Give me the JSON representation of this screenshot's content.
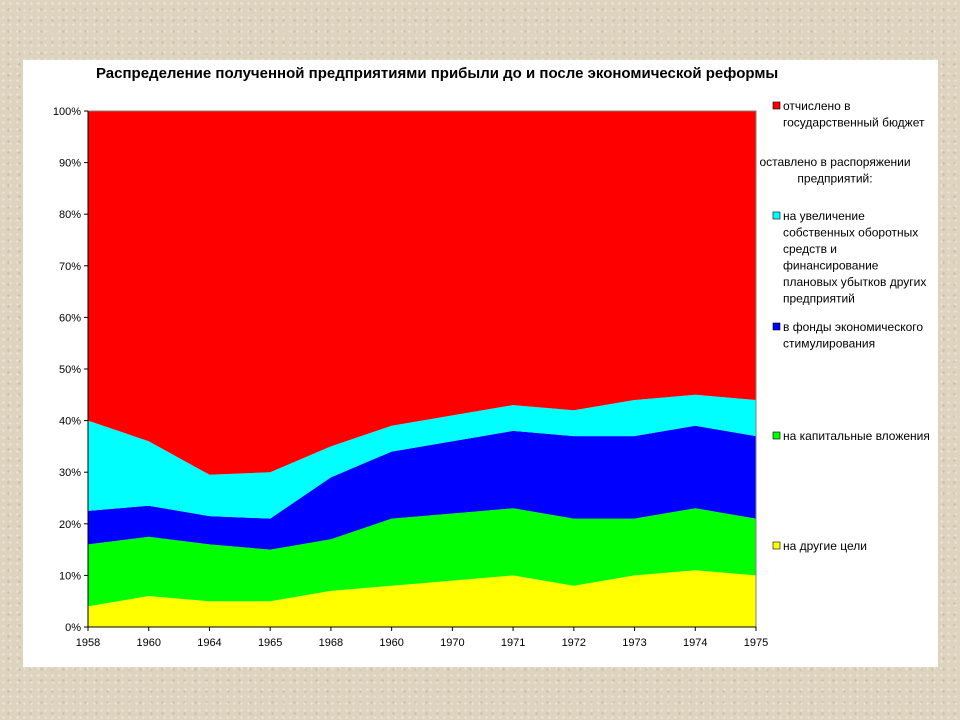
{
  "chart_data": {
    "type": "area",
    "stacked": "percent",
    "title": "Распределение полученной предприятиями прибыли до и после экономической реформы",
    "categories": [
      "1958",
      "1960",
      "1964",
      "1965",
      "1968",
      "1960",
      "1970",
      "1971",
      "1972",
      "1973",
      "1974",
      "1975"
    ],
    "y_ticks": [
      "0%",
      "10%",
      "20%",
      "30%",
      "40%",
      "50%",
      "60%",
      "70%",
      "80%",
      "90%",
      "100%"
    ],
    "ylim": [
      0,
      100
    ],
    "legend_position": "right",
    "legend_header": [
      "оставлено в распоряжении",
      "предприятий:"
    ],
    "series": [
      {
        "name": "на другие цели",
        "name_lines": [
          "на другие цели"
        ],
        "color": "#ffff00",
        "values": [
          4,
          6,
          5,
          5,
          7,
          8,
          9,
          10,
          8,
          10,
          11,
          10
        ]
      },
      {
        "name": "на капитальные вложения",
        "name_lines": [
          "на капитальные вложения"
        ],
        "color": "#00ff00",
        "values": [
          12,
          11.5,
          11,
          10,
          10,
          13,
          13,
          13,
          13,
          11,
          12,
          11
        ]
      },
      {
        "name": "в фонды экономического стимулирования",
        "name_lines": [
          "в фонды экономического",
          "стимулирования"
        ],
        "color": "#0000ff",
        "values": [
          6.5,
          6,
          5.5,
          6,
          12,
          13,
          14,
          15,
          16,
          16,
          16,
          16
        ]
      },
      {
        "name": "на увеличение собственных оборотных средств и финансирование плановых убытков других предприятий",
        "name_lines": [
          "на увеличение",
          "собственных оборотных",
          "средств и",
          "финансирование",
          "плановых убытков других",
          "предприятий"
        ],
        "color": "#00ffff",
        "values": [
          17.5,
          12.5,
          8,
          9,
          6,
          5,
          5,
          5,
          5,
          7,
          6,
          7
        ]
      },
      {
        "name": "отчислено в государственный бюджет",
        "name_lines": [
          "отчислено в",
          "государственный бюджет"
        ],
        "color": "#ff0000",
        "values": [
          60,
          64,
          70.5,
          70,
          65,
          61,
          59,
          57,
          58,
          56,
          55,
          56
        ]
      }
    ]
  }
}
